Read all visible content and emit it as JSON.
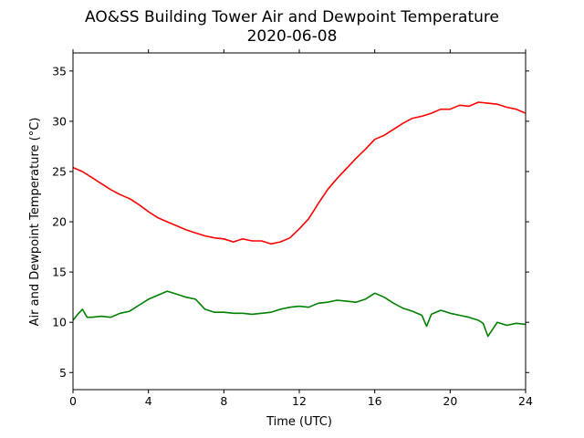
{
  "chart_data": {
    "type": "line",
    "title": "AO&SS Building Tower Air and Dewpoint Temperature",
    "subtitle": "2020-06-08",
    "xlabel": "Time (UTC)",
    "ylabel": "Air and Dewpoint Temperature (°C)",
    "xlim": [
      0,
      24
    ],
    "ylim": [
      3.3,
      36.8
    ],
    "xticks": [
      0,
      4,
      8,
      12,
      16,
      20,
      24
    ],
    "yticks": [
      5,
      10,
      15,
      20,
      25,
      30,
      35
    ],
    "grid": false,
    "legend": "none",
    "series": [
      {
        "color": "#ff0000",
        "x": [
          0,
          0.5,
          1,
          1.5,
          2,
          2.5,
          3,
          3.5,
          4,
          4.5,
          5,
          5.5,
          6,
          6.5,
          7,
          7.5,
          8,
          8.5,
          9,
          9.5,
          10,
          10.5,
          11,
          11.5,
          12,
          12.5,
          13,
          13.5,
          14,
          14.5,
          15,
          15.5,
          16,
          16.5,
          17,
          17.5,
          18,
          18.5,
          19,
          19.5,
          20,
          20.5,
          21,
          21.5,
          22,
          22.5,
          23,
          23.5,
          24
        ],
        "y": [
          25.4,
          25.0,
          24.4,
          23.8,
          23.2,
          22.7,
          22.3,
          21.7,
          21.0,
          20.4,
          20.0,
          19.6,
          19.2,
          18.9,
          18.6,
          18.4,
          18.3,
          18.0,
          18.3,
          18.1,
          18.1,
          17.8,
          18.0,
          18.4,
          19.3,
          20.3,
          21.8,
          23.2,
          24.3,
          25.3,
          26.3,
          27.2,
          28.2,
          28.6,
          29.2,
          29.8,
          30.3,
          30.5,
          30.8,
          31.2,
          31.2,
          31.6,
          31.5,
          31.9,
          31.8,
          31.7,
          31.4,
          31.2,
          30.8
        ]
      },
      {
        "color": "#008000",
        "x": [
          0,
          0.25,
          0.5,
          0.75,
          1,
          1.5,
          2,
          2.5,
          3,
          3.5,
          4,
          4.5,
          5,
          5.5,
          6,
          6.5,
          7,
          7.5,
          8,
          8.5,
          9,
          9.5,
          10,
          10.5,
          11,
          11.5,
          12,
          12.5,
          13,
          13.5,
          14,
          14.5,
          15,
          15.5,
          16,
          16.5,
          17,
          17.5,
          18,
          18.5,
          18.75,
          19,
          19.5,
          20,
          20.5,
          21,
          21.5,
          21.75,
          22,
          22.5,
          23,
          23.5,
          24
        ],
        "y": [
          10.2,
          10.8,
          11.3,
          10.5,
          10.5,
          10.6,
          10.5,
          10.9,
          11.1,
          11.7,
          12.3,
          12.7,
          13.1,
          12.8,
          12.5,
          12.3,
          11.3,
          11.0,
          11.0,
          10.9,
          10.9,
          10.8,
          10.9,
          11.0,
          11.3,
          11.5,
          11.6,
          11.5,
          11.9,
          12.0,
          12.2,
          12.1,
          12.0,
          12.3,
          12.9,
          12.5,
          11.9,
          11.4,
          11.1,
          10.7,
          9.6,
          10.8,
          11.2,
          10.9,
          10.7,
          10.5,
          10.2,
          9.9,
          8.6,
          10.0,
          9.7,
          9.9,
          9.8
        ]
      }
    ]
  }
}
